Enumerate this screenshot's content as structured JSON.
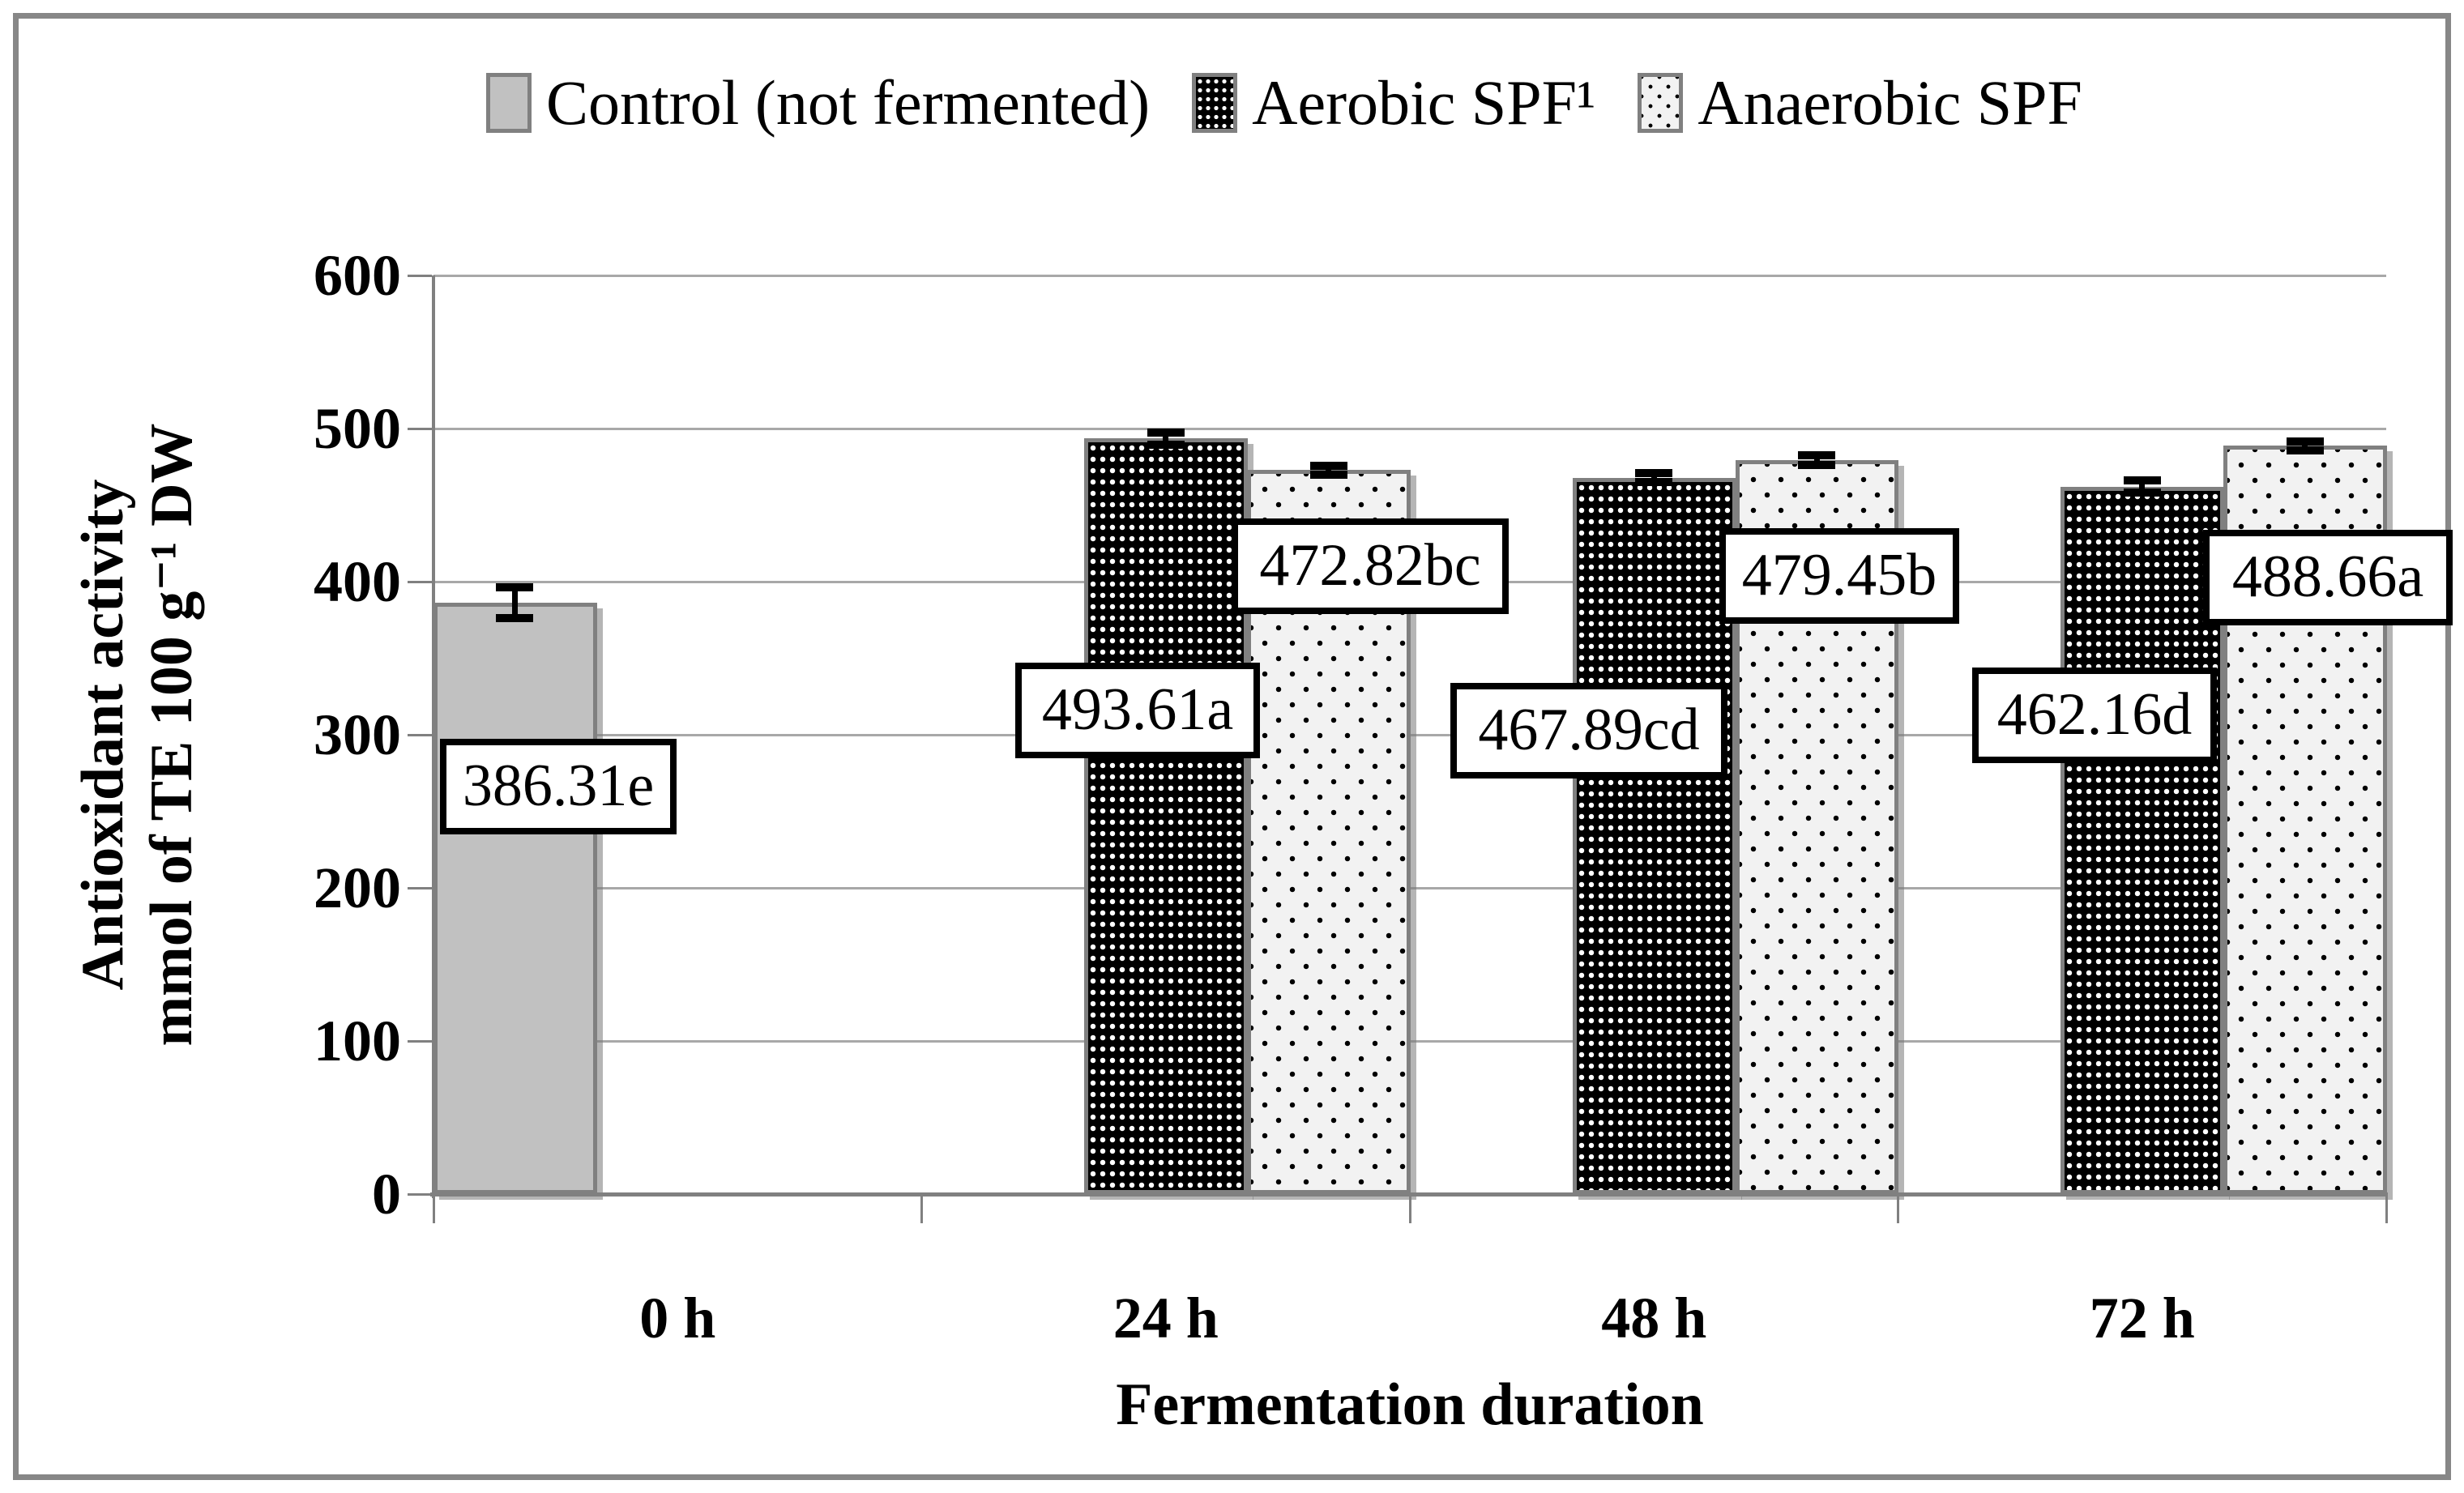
{
  "figure": {
    "description": "Bar chart of antioxidant activity versus fermentation duration"
  },
  "chart_data": {
    "type": "bar",
    "title": "",
    "xlabel": "Fermentation duration",
    "ylabel_lines": [
      "Antioxidant activity",
      "mmol of TE 100 g⁻¹ DW"
    ],
    "ylim": [
      0,
      600
    ],
    "ytick_step": 100,
    "yticks": [
      0,
      100,
      200,
      300,
      400,
      500,
      600
    ],
    "categories": [
      "0 h",
      "24 h",
      "48 h",
      "72 h"
    ],
    "grid": true,
    "legend_position": "top",
    "series": [
      {
        "name": "Control (not fermented)",
        "style": "solid-gray",
        "values": [
          386.31,
          null,
          null,
          null
        ],
        "labels": [
          "386.31e",
          null,
          null,
          null
        ],
        "errors": [
          10,
          null,
          null,
          null
        ]
      },
      {
        "name": "Aerobic SPF¹",
        "style": "dark-dotted",
        "values": [
          null,
          493.61,
          467.89,
          462.16
        ],
        "labels": [
          null,
          "493.61a",
          "467.89cd",
          "462.16d"
        ],
        "errors": [
          null,
          4,
          3,
          4
        ]
      },
      {
        "name": "Anaerobic SPF",
        "style": "light-dotted",
        "values": [
          null,
          472.82,
          479.45,
          488.66
        ],
        "labels": [
          null,
          "472.82bc",
          "479.45b",
          "488.66a"
        ],
        "errors": [
          null,
          3,
          3,
          3
        ]
      }
    ],
    "colors": {
      "control_fill": "#c1c1c1",
      "bar_border": "#808080",
      "gridline": "#a8a8a8",
      "axis": "#808080",
      "data_label_box_border": "#000000",
      "data_label_box_fill": "#ffffff",
      "figure_border": "#878787"
    }
  }
}
